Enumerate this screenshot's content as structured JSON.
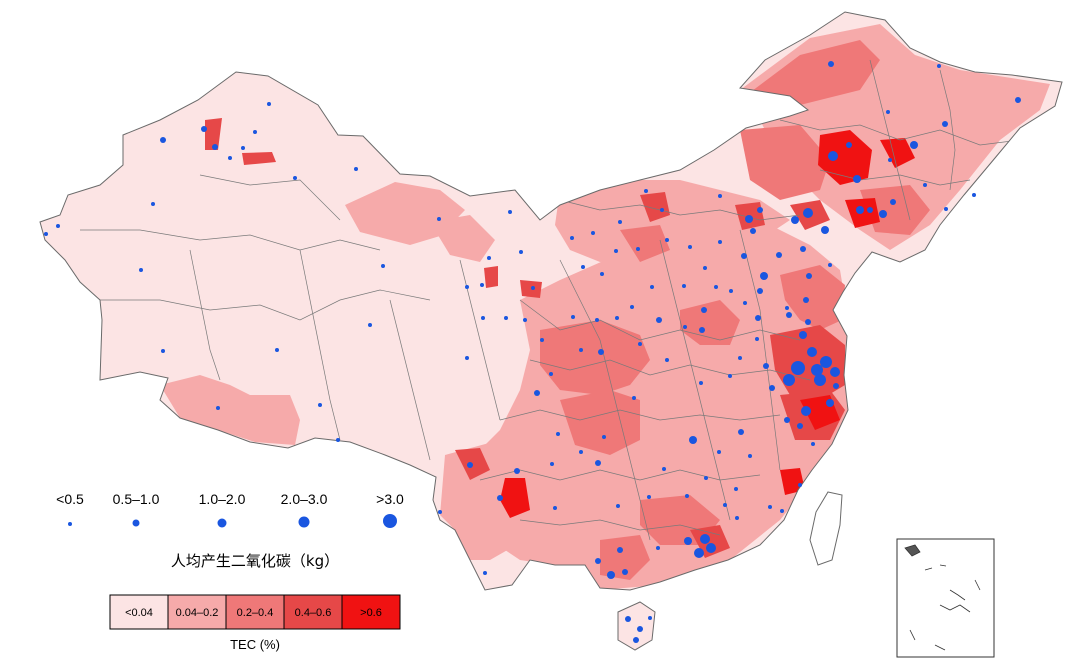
{
  "figure": {
    "bubble_legend_title": "人均产生二氧化碳（kg）",
    "tec_legend_title": "TEC (%)",
    "bubble_classes": [
      {
        "label": "<0.5"
      },
      {
        "label": "0.5–1.0"
      },
      {
        "label": "1.0–2.0"
      },
      {
        "label": "2.0–3.0"
      },
      {
        "label": ">3.0"
      }
    ],
    "tec_classes": [
      {
        "label": "<0.04",
        "color": "#fce4e4"
      },
      {
        "label": "0.04–0.2",
        "color": "#f6aaaa"
      },
      {
        "label": "0.2–0.4",
        "color": "#ef7878"
      },
      {
        "label": "0.4–0.6",
        "color": "#e64848"
      },
      {
        "label": ">0.6",
        "color": "#f01212"
      }
    ],
    "colors": {
      "dot": "#1a56e0",
      "boundary": "#7a7a7a",
      "background": "#ffffff"
    }
  }
}
